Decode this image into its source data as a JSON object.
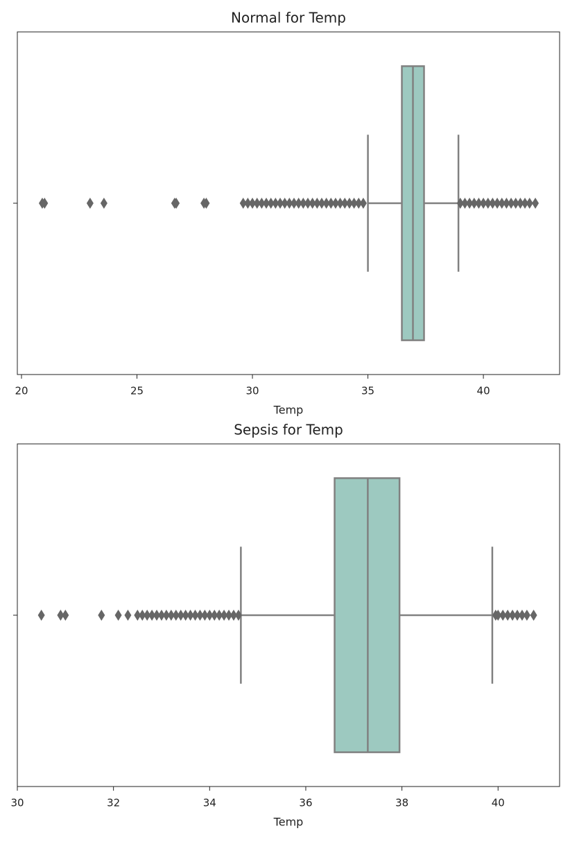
{
  "chart_data": [
    {
      "type": "box",
      "title": "Normal for Temp",
      "xlabel": "Temp",
      "xlim": [
        19.82,
        43.3
      ],
      "xticks": [
        20,
        25,
        30,
        35,
        40
      ],
      "color": "#9dc9c0",
      "line_color": "#808080",
      "flier_color": "#666666",
      "whislo": 35.0,
      "q1": 36.47,
      "med": 36.95,
      "q3": 37.43,
      "whishi": 38.92,
      "fliers": [
        20.9,
        21.0,
        22.97,
        23.57,
        26.63,
        26.7,
        27.9,
        28.0,
        29.6,
        29.8,
        30.0,
        30.2,
        30.4,
        30.6,
        30.8,
        31.0,
        31.2,
        31.4,
        31.6,
        31.8,
        32.0,
        32.2,
        32.4,
        32.6,
        32.8,
        33.0,
        33.2,
        33.4,
        33.6,
        33.8,
        34.0,
        34.2,
        34.4,
        34.6,
        34.8,
        39.0,
        39.2,
        39.4,
        39.6,
        39.8,
        40.0,
        40.2,
        40.4,
        40.6,
        40.8,
        41.0,
        41.2,
        41.4,
        41.6,
        41.8,
        42.0,
        42.25
      ]
    },
    {
      "type": "box",
      "title": "Sepsis for Temp",
      "xlabel": "Temp",
      "xlim": [
        30.0,
        41.28
      ],
      "xticks": [
        30,
        32,
        34,
        36,
        38,
        40
      ],
      "color": "#9dc9c0",
      "line_color": "#808080",
      "flier_color": "#666666",
      "whislo": 34.65,
      "q1": 36.6,
      "med": 37.29,
      "q3": 37.95,
      "whishi": 39.88,
      "fliers": [
        30.5,
        30.9,
        31.0,
        31.75,
        32.1,
        32.3,
        32.5,
        32.6,
        32.7,
        32.8,
        32.9,
        33.0,
        33.1,
        33.2,
        33.3,
        33.4,
        33.5,
        33.6,
        33.7,
        33.8,
        33.9,
        34.0,
        34.1,
        34.2,
        34.3,
        34.4,
        34.5,
        34.6,
        39.95,
        40.0,
        40.1,
        40.2,
        40.3,
        40.4,
        40.5,
        40.6,
        40.74
      ]
    }
  ]
}
